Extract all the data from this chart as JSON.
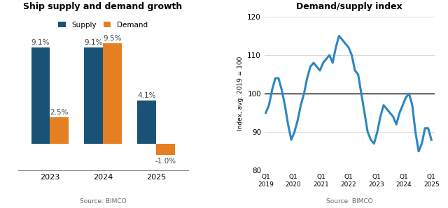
{
  "bar_title": "Ship supply and demand growth",
  "bar_categories": [
    "2023",
    "2024",
    "2025"
  ],
  "bar_supply": [
    9.1,
    9.1,
    4.1
  ],
  "bar_demand": [
    2.5,
    9.5,
    -1.0
  ],
  "supply_color": "#1a5276",
  "demand_color": "#e67e22",
  "bar_source": "Source: BIMCO",
  "legend_labels": [
    "Supply",
    "Demand"
  ],
  "line_title": "Demand/supply index",
  "line_ylabel": "Index, avg. 2019 = 100",
  "line_source": "Source: BIMCO",
  "line_ylim": [
    80,
    120
  ],
  "line_yticks": [
    80,
    90,
    100,
    110,
    120
  ],
  "line_color": "#2e86c1",
  "line_width": 2.2,
  "line_reference": 100,
  "x_tick_labels": [
    "Q1\n2019",
    "Q1\n2020",
    "Q1\n2021",
    "Q1\n2022",
    "Q1\n2023",
    "Q1\n2024",
    "Q1\n2025"
  ],
  "line_x": [
    0,
    0.5,
    1,
    1.5,
    2,
    2.5,
    3,
    3.5,
    4,
    4.5,
    5,
    5.5,
    6,
    6.5,
    7,
    7.5,
    8,
    8.5,
    9,
    9.5,
    10,
    10.5,
    11,
    11.5,
    12,
    12.5,
    13,
    13.5,
    14,
    14.5,
    15,
    15.5,
    16,
    16.5,
    17,
    17.5,
    18,
    18.5,
    19,
    19.5,
    20,
    20.5,
    21,
    21.5,
    22,
    22.5,
    23,
    23.5,
    24,
    24.5,
    25,
    25.5,
    26
  ],
  "line_y": [
    95,
    97,
    101,
    104,
    104,
    101,
    97,
    92,
    88,
    90,
    93,
    97,
    100,
    104,
    107,
    108,
    107,
    106,
    108,
    109,
    110,
    108,
    112,
    115,
    114,
    113,
    112,
    110,
    106,
    105,
    100,
    95,
    90,
    88,
    87,
    90,
    94,
    97,
    96,
    95,
    94,
    92,
    95,
    97,
    99,
    100,
    97,
    90,
    85,
    87,
    91,
    91,
    88
  ]
}
